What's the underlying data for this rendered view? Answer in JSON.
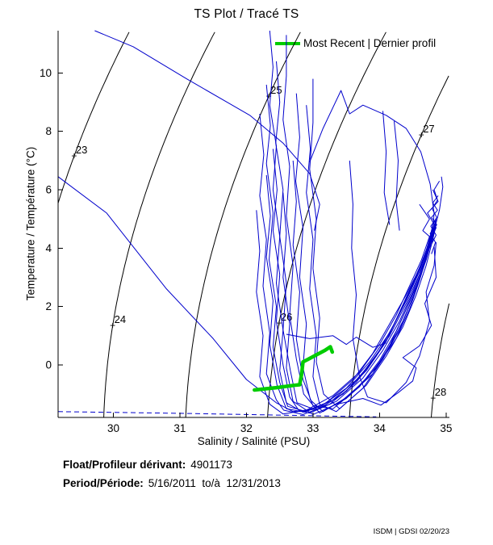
{
  "chart_data": {
    "type": "line",
    "title": "TS Plot / Tracé TS",
    "xlabel": "Salinity / Salinité (PSU)",
    "ylabel": "Temperature / Température (°C)",
    "xlim": [
      29.17,
      35.05
    ],
    "ylim": [
      -1.8,
      11.45
    ],
    "xticks": [
      30,
      31,
      32,
      33,
      34,
      35
    ],
    "yticks": [
      0,
      2,
      4,
      6,
      8,
      10
    ],
    "grid": false,
    "legend": {
      "position": "top-right-inside",
      "entries": [
        {
          "label": "Most Recent | Dernier profil",
          "color": "#00cc00"
        }
      ]
    },
    "colors": {
      "profile": "#0000cc",
      "most_recent": "#00cc00",
      "isopycnal": "#000000",
      "freezing": "#0000cc"
    },
    "isopycnals": {
      "values": [
        23,
        24,
        25,
        26,
        27,
        28
      ],
      "labels": [
        {
          "value": 23,
          "t": 7.16
        },
        {
          "value": 24,
          "t": 1.35
        },
        {
          "value": 25,
          "t": 9.21
        },
        {
          "value": 26,
          "t": 1.44
        },
        {
          "value": 27,
          "t": 7.88
        },
        {
          "value": 28,
          "t": -1.13
        }
      ]
    },
    "freezing_line": {
      "style": "dashed",
      "points": [
        [
          29.17,
          -1.6
        ],
        [
          31.0,
          -1.66
        ],
        [
          32.2,
          -1.71
        ],
        [
          33.2,
          -1.75
        ],
        [
          33.95,
          -1.78
        ]
      ]
    },
    "profiles": [
      [
        [
          32.3,
          9.6
        ],
        [
          32.36,
          8.2
        ],
        [
          32.3,
          6.9
        ],
        [
          32.4,
          5.2
        ],
        [
          32.34,
          3.6
        ],
        [
          32.45,
          2.0
        ],
        [
          32.4,
          0.6
        ],
        [
          32.5,
          -0.6
        ],
        [
          32.62,
          -1.42
        ],
        [
          32.9,
          -1.6
        ],
        [
          33.3,
          -1.2
        ],
        [
          33.7,
          -0.42
        ],
        [
          34.0,
          0.5
        ],
        [
          34.22,
          1.4
        ],
        [
          34.4,
          2.3
        ],
        [
          34.56,
          3.1
        ],
        [
          34.7,
          3.9
        ],
        [
          34.78,
          4.55
        ],
        [
          34.82,
          4.9
        ]
      ],
      [
        [
          32.45,
          10.4
        ],
        [
          32.5,
          9.0
        ],
        [
          32.44,
          7.6
        ],
        [
          32.55,
          6.0
        ],
        [
          32.5,
          4.4
        ],
        [
          32.6,
          2.8
        ],
        [
          32.55,
          1.2
        ],
        [
          32.66,
          -0.2
        ],
        [
          32.76,
          -1.3
        ],
        [
          33.05,
          -1.55
        ],
        [
          33.45,
          -1.0
        ],
        [
          33.8,
          -0.2
        ],
        [
          34.1,
          0.8
        ],
        [
          34.3,
          1.8
        ],
        [
          34.5,
          2.8
        ],
        [
          34.65,
          3.6
        ],
        [
          34.76,
          4.3
        ],
        [
          34.8,
          4.8
        ]
      ],
      [
        [
          32.6,
          11.3
        ],
        [
          32.6,
          9.9
        ],
        [
          32.55,
          8.4
        ],
        [
          32.65,
          6.8
        ],
        [
          32.6,
          5.1
        ],
        [
          32.7,
          3.4
        ],
        [
          32.65,
          1.7
        ],
        [
          32.75,
          0.2
        ],
        [
          32.86,
          -1.0
        ],
        [
          33.1,
          -1.65
        ],
        [
          33.5,
          -1.15
        ],
        [
          33.9,
          -0.3
        ],
        [
          34.16,
          0.7
        ],
        [
          34.36,
          1.7
        ],
        [
          34.55,
          2.7
        ],
        [
          34.7,
          3.6
        ],
        [
          34.8,
          4.4
        ],
        [
          34.85,
          5.0
        ]
      ],
      [
        [
          32.2,
          8.6
        ],
        [
          32.26,
          7.2
        ],
        [
          32.2,
          5.8
        ],
        [
          32.3,
          4.3
        ],
        [
          32.25,
          2.7
        ],
        [
          32.35,
          1.1
        ],
        [
          32.3,
          -0.3
        ],
        [
          32.45,
          -1.2
        ],
        [
          32.56,
          -1.55
        ],
        [
          32.85,
          -1.7
        ],
        [
          33.25,
          -1.35
        ],
        [
          33.65,
          -0.6
        ],
        [
          33.95,
          0.3
        ],
        [
          34.2,
          1.3
        ],
        [
          34.4,
          2.2
        ],
        [
          34.6,
          3.2
        ],
        [
          34.72,
          4.0
        ],
        [
          34.78,
          4.6
        ]
      ],
      [
        [
          32.75,
          9.3
        ],
        [
          32.8,
          7.8
        ],
        [
          32.74,
          6.3
        ],
        [
          32.85,
          4.7
        ],
        [
          32.8,
          3.0
        ],
        [
          32.9,
          1.4
        ],
        [
          32.85,
          -0.1
        ],
        [
          32.96,
          -1.2
        ],
        [
          33.15,
          -1.6
        ],
        [
          33.55,
          -1.05
        ],
        [
          33.95,
          -0.1
        ],
        [
          34.25,
          0.9
        ],
        [
          34.45,
          1.9
        ],
        [
          34.6,
          2.9
        ],
        [
          34.72,
          3.8
        ],
        [
          34.8,
          4.5
        ],
        [
          34.84,
          4.95
        ]
      ],
      [
        [
          32.4,
          7.4
        ],
        [
          32.46,
          6.0
        ],
        [
          32.4,
          4.6
        ],
        [
          32.5,
          3.1
        ],
        [
          32.45,
          1.5
        ],
        [
          32.55,
          0.0
        ],
        [
          32.65,
          -1.1
        ],
        [
          32.8,
          -1.6
        ],
        [
          33.1,
          -1.45
        ],
        [
          33.5,
          -0.8
        ],
        [
          33.85,
          0.1
        ],
        [
          34.15,
          1.1
        ],
        [
          34.35,
          2.0
        ],
        [
          34.55,
          3.0
        ],
        [
          34.7,
          3.85
        ],
        [
          34.79,
          4.65
        ]
      ],
      [
        [
          32.9,
          8.9
        ],
        [
          32.96,
          7.4
        ],
        [
          32.9,
          5.9
        ],
        [
          33.0,
          4.3
        ],
        [
          32.95,
          2.6
        ],
        [
          33.05,
          1.0
        ],
        [
          33.0,
          -0.4
        ],
        [
          33.1,
          -1.35
        ],
        [
          33.35,
          -1.6
        ],
        [
          33.75,
          -0.8
        ],
        [
          34.05,
          0.2
        ],
        [
          34.3,
          1.2
        ],
        [
          34.5,
          2.3
        ],
        [
          34.65,
          3.3
        ],
        [
          34.76,
          4.1
        ],
        [
          34.82,
          4.7
        ]
      ],
      [
        [
          32.3,
          6.5
        ],
        [
          32.36,
          5.1
        ],
        [
          32.3,
          3.7
        ],
        [
          32.4,
          2.2
        ],
        [
          32.35,
          0.7
        ],
        [
          32.46,
          -0.7
        ],
        [
          32.6,
          -1.5
        ],
        [
          32.95,
          -1.65
        ],
        [
          33.35,
          -1.25
        ],
        [
          33.75,
          -0.45
        ],
        [
          34.05,
          0.5
        ],
        [
          34.3,
          1.5
        ],
        [
          34.5,
          2.5
        ],
        [
          34.67,
          3.5
        ],
        [
          34.78,
          4.35
        ],
        [
          34.83,
          4.85
        ]
      ],
      [
        [
          32.55,
          5.9
        ],
        [
          32.6,
          4.5
        ],
        [
          32.55,
          3.0
        ],
        [
          32.65,
          1.4
        ],
        [
          32.6,
          -0.1
        ],
        [
          32.7,
          -1.25
        ],
        [
          33.0,
          -1.7
        ],
        [
          33.4,
          -1.3
        ],
        [
          33.8,
          -0.5
        ],
        [
          34.1,
          0.4
        ],
        [
          34.35,
          1.5
        ],
        [
          34.55,
          2.6
        ],
        [
          34.7,
          3.6
        ],
        [
          34.8,
          4.5
        ]
      ],
      [
        [
          33.0,
          9.8
        ],
        [
          33.0,
          8.3
        ],
        [
          32.95,
          6.7
        ],
        [
          33.05,
          5.0
        ],
        [
          33.0,
          3.3
        ],
        [
          33.1,
          1.6
        ],
        [
          33.05,
          0.1
        ],
        [
          33.16,
          -1.0
        ],
        [
          33.4,
          -1.5
        ],
        [
          33.8,
          -0.7
        ],
        [
          34.1,
          0.3
        ],
        [
          34.35,
          1.3
        ],
        [
          34.55,
          2.4
        ],
        [
          34.7,
          3.4
        ],
        [
          34.8,
          4.3
        ],
        [
          34.85,
          4.8
        ]
      ],
      [
        [
          29.17,
          6.45
        ],
        [
          29.9,
          5.2
        ],
        [
          30.8,
          2.6
        ],
        [
          31.5,
          0.9
        ],
        [
          32.0,
          -0.5
        ],
        [
          32.45,
          -1.3
        ],
        [
          32.7,
          -1.6
        ],
        [
          33.1,
          -1.5
        ],
        [
          33.5,
          -0.9
        ],
        [
          33.85,
          0.0
        ],
        [
          34.15,
          1.0
        ],
        [
          34.4,
          2.1
        ],
        [
          34.6,
          3.1
        ],
        [
          34.73,
          4.0
        ],
        [
          34.8,
          4.6
        ]
      ],
      [
        [
          29.72,
          11.45
        ],
        [
          30.3,
          10.9
        ],
        [
          31.1,
          9.8
        ],
        [
          32.05,
          8.55
        ],
        [
          32.55,
          7.6
        ],
        [
          32.95,
          6.55
        ],
        [
          33.1,
          5.5
        ],
        [
          33.02,
          4.6
        ]
      ],
      [
        [
          32.35,
          11.45
        ],
        [
          32.4,
          10.2
        ],
        [
          32.35,
          8.9
        ],
        [
          32.45,
          7.5
        ],
        [
          32.4,
          6.0
        ],
        [
          32.5,
          4.4
        ],
        [
          32.45,
          2.8
        ],
        [
          32.55,
          1.2
        ],
        [
          32.5,
          -0.2
        ],
        [
          32.6,
          -1.3
        ],
        [
          32.85,
          -1.62
        ],
        [
          33.2,
          -1.3
        ],
        [
          33.6,
          -0.5
        ],
        [
          33.9,
          0.4
        ],
        [
          34.15,
          1.4
        ],
        [
          34.4,
          2.4
        ],
        [
          34.6,
          3.3
        ],
        [
          34.73,
          4.1
        ],
        [
          34.79,
          4.7
        ]
      ],
      [
        [
          32.95,
          6.95
        ],
        [
          33.15,
          8.1
        ],
        [
          33.42,
          9.4
        ],
        [
          33.55,
          8.6
        ],
        [
          33.75,
          8.9
        ],
        [
          34.1,
          8.55
        ],
        [
          34.4,
          8.1
        ],
        [
          34.62,
          7.3
        ],
        [
          34.76,
          6.2
        ],
        [
          34.82,
          5.2
        ],
        [
          34.8,
          4.6
        ]
      ],
      [
        [
          33.55,
          7.0
        ],
        [
          33.6,
          5.5
        ],
        [
          33.58,
          4.0
        ],
        [
          33.65,
          2.4
        ],
        [
          33.6,
          0.9
        ],
        [
          33.7,
          -0.4
        ],
        [
          33.82,
          -1.1
        ],
        [
          34.1,
          -1.3
        ],
        [
          34.4,
          -0.6
        ],
        [
          34.6,
          0.3
        ],
        [
          34.75,
          1.5
        ],
        [
          34.7,
          2.5
        ],
        [
          34.82,
          3.4
        ],
        [
          34.85,
          4.2
        ]
      ],
      [
        [
          33.35,
          -1.35
        ],
        [
          33.75,
          -1.15
        ],
        [
          34.02,
          -1.38
        ],
        [
          34.28,
          -0.95
        ],
        [
          34.5,
          -0.55
        ],
        [
          34.55,
          -0.1
        ],
        [
          34.35,
          0.25
        ],
        [
          34.6,
          0.65
        ],
        [
          34.78,
          1.35
        ],
        [
          34.68,
          2.1
        ],
        [
          34.85,
          3.0
        ],
        [
          34.82,
          4.05
        ]
      ],
      [
        [
          34.82,
          4.6
        ],
        [
          34.9,
          5.3
        ],
        [
          34.95,
          6.1
        ],
        [
          34.93,
          6.45
        ]
      ],
      [
        [
          34.22,
          8.35
        ],
        [
          34.28,
          7.0
        ],
        [
          34.25,
          5.6
        ],
        [
          34.3,
          4.6
        ]
      ],
      [
        [
          34.05,
          8.7
        ],
        [
          34.1,
          7.3
        ],
        [
          34.07,
          5.9
        ],
        [
          34.15,
          4.8
        ]
      ],
      [
        [
          34.6,
          5.5
        ],
        [
          34.75,
          5.0
        ],
        [
          34.65,
          4.6
        ],
        [
          34.8,
          4.3
        ],
        [
          34.7,
          3.9
        ],
        [
          34.85,
          4.7
        ],
        [
          34.72,
          5.2
        ],
        [
          34.88,
          5.6
        ],
        [
          34.8,
          6.0
        ]
      ],
      [
        [
          34.78,
          3.8
        ],
        [
          34.84,
          4.2
        ],
        [
          34.76,
          4.5
        ],
        [
          34.86,
          4.8
        ],
        [
          34.78,
          5.05
        ],
        [
          34.87,
          5.3
        ],
        [
          34.8,
          5.55
        ],
        [
          34.88,
          5.8
        ]
      ],
      [
        [
          34.75,
          4.0
        ],
        [
          34.85,
          4.45
        ],
        [
          34.77,
          4.75
        ],
        [
          34.86,
          5.05
        ],
        [
          34.79,
          5.35
        ],
        [
          34.87,
          5.65
        ],
        [
          34.82,
          6.0
        ],
        [
          34.9,
          6.3
        ]
      ],
      [
        [
          32.15,
          5.3
        ],
        [
          32.2,
          3.9
        ],
        [
          32.15,
          2.5
        ],
        [
          32.25,
          1.0
        ],
        [
          32.2,
          -0.4
        ],
        [
          32.35,
          -1.35
        ],
        [
          32.55,
          -1.68
        ],
        [
          32.9,
          -1.55
        ],
        [
          33.3,
          -1.05
        ],
        [
          33.7,
          -0.25
        ],
        [
          34.0,
          0.7
        ],
        [
          34.25,
          1.7
        ],
        [
          34.45,
          2.7
        ],
        [
          34.63,
          3.6
        ],
        [
          34.75,
          4.4
        ]
      ],
      [
        [
          32.7,
          7.0
        ],
        [
          32.75,
          5.6
        ],
        [
          32.7,
          4.1
        ],
        [
          32.8,
          2.5
        ],
        [
          32.75,
          0.9
        ],
        [
          32.85,
          -0.5
        ],
        [
          33.0,
          -1.4
        ],
        [
          33.3,
          -1.5
        ],
        [
          33.7,
          -0.75
        ],
        [
          34.0,
          0.15
        ],
        [
          34.25,
          1.15
        ],
        [
          34.45,
          2.15
        ],
        [
          34.62,
          3.05
        ],
        [
          34.74,
          3.95
        ],
        [
          34.81,
          4.65
        ]
      ],
      [
        [
          32.6,
          1.05
        ],
        [
          32.95,
          0.9
        ],
        [
          33.3,
          1.0
        ],
        [
          33.5,
          0.7
        ],
        [
          33.65,
          0.95
        ],
        [
          33.9,
          0.6
        ],
        [
          34.1,
          0.75
        ]
      ]
    ],
    "most_recent_profile": [
      [
        32.12,
        -0.86
      ],
      [
        32.45,
        -0.78
      ],
      [
        32.72,
        -0.7
      ],
      [
        32.8,
        -0.68
      ],
      [
        32.83,
        -0.3
      ],
      [
        32.85,
        0.1
      ],
      [
        33.0,
        0.28
      ],
      [
        33.18,
        0.5
      ],
      [
        33.26,
        0.62
      ],
      [
        33.29,
        0.44
      ]
    ]
  },
  "footer": {
    "float_label": "Float/Profileur dérivant:",
    "float_value": "4901173",
    "period_label": "Period/Période:",
    "period_value": "5/16/2011  to/à  12/31/2013"
  },
  "credit": "ISDM | GDSI 02/20/23"
}
